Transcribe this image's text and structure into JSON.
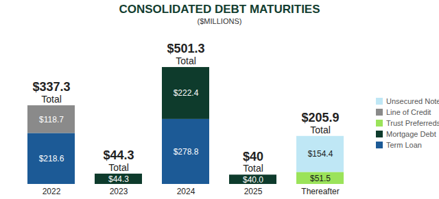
{
  "chart_data": {
    "type": "bar",
    "title": "CONSOLIDATED DEBT MATURITIES",
    "subtitle": "($MILLIONS)",
    "categories": [
      "2022",
      "2023",
      "2024",
      "2025",
      "Thereafter"
    ],
    "stacked": true,
    "data_labels": true,
    "legend": "right",
    "tick_labels": "x",
    "grid": false,
    "series": [
      {
        "name": "Unsecured Notes",
        "color": "#bfe7f5",
        "values": [
          null,
          null,
          null,
          null,
          154.4
        ],
        "value_labels": [
          null,
          null,
          null,
          null,
          "$154.4"
        ]
      },
      {
        "name": "Line of Credit",
        "color": "#8a8a8a",
        "values": [
          118.7,
          null,
          null,
          null,
          null
        ],
        "value_labels": [
          "$118.7",
          null,
          null,
          null,
          null
        ]
      },
      {
        "name": "Trust Preferreds",
        "color": "#9be35a",
        "values": [
          null,
          null,
          null,
          null,
          51.5
        ],
        "value_labels": [
          null,
          null,
          null,
          null,
          "$51.5"
        ]
      },
      {
        "name": "Mortgage Debt",
        "color": "#0e3b2c",
        "values": [
          null,
          44.3,
          222.4,
          40.0,
          null
        ],
        "value_labels": [
          null,
          "$44.3",
          "$222.4",
          "$40.0",
          null
        ]
      },
      {
        "name": "Term Loan",
        "color": "#1c5a96",
        "values": [
          218.6,
          null,
          278.8,
          null,
          null
        ],
        "value_labels": [
          "$218.6",
          null,
          "$278.8",
          null,
          null
        ]
      }
    ],
    "totals": [
      337.3,
      44.3,
      501.3,
      40,
      205.9
    ],
    "total_labels": [
      "$337.3",
      "$44.3",
      "$501.3",
      "$40",
      "$205.9"
    ],
    "total_caption": "Total"
  }
}
